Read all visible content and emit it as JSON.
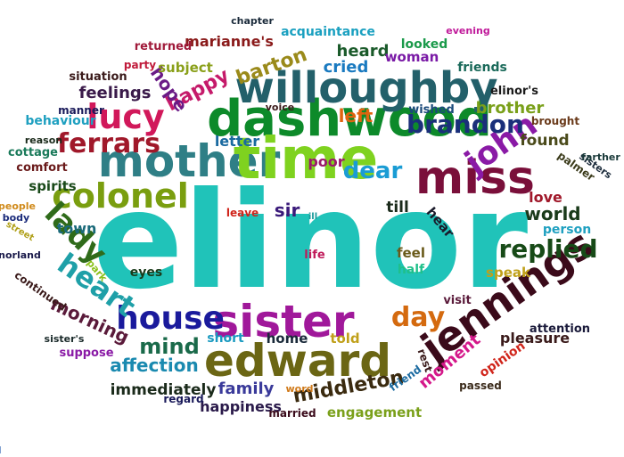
{
  "words": [
    {
      "id": "elinor",
      "text": "elinor",
      "color": "#20c3b9"
    },
    {
      "id": "dashwood",
      "text": "dashwood",
      "color": "#0d8a2a"
    },
    {
      "id": "mother",
      "text": "mother",
      "color": "#2f7f86"
    },
    {
      "id": "time",
      "text": "time",
      "color": "#7fd21f"
    },
    {
      "id": "willoughby",
      "text": "willoughby",
      "color": "#23606a"
    },
    {
      "id": "miss",
      "text": "miss",
      "color": "#7a0f3a"
    },
    {
      "id": "sister",
      "text": "sister",
      "color": "#a0189a"
    },
    {
      "id": "edward",
      "text": "edward",
      "color": "#6b6614"
    },
    {
      "id": "jennings",
      "text": "jennings",
      "color": "#3b0a1a"
    },
    {
      "id": "colonel",
      "text": "colonel",
      "color": "#7a9e0f"
    },
    {
      "id": "house",
      "text": "house",
      "color": "#1a1a9c"
    },
    {
      "id": "lucy",
      "text": "lucy",
      "color": "#d1185a"
    },
    {
      "id": "john",
      "text": "john",
      "color": "#8a1aa6"
    },
    {
      "id": "brandon",
      "text": "brandon",
      "color": "#1a2f7a"
    },
    {
      "id": "ferrars",
      "text": "ferrars",
      "color": "#a0182a"
    },
    {
      "id": "lady",
      "text": "lady",
      "color": "#2f6b1a"
    },
    {
      "id": "heart",
      "text": "heart",
      "color": "#1fa0a8"
    },
    {
      "id": "day",
      "text": "day",
      "color": "#d46a0f"
    },
    {
      "id": "dear",
      "text": "dear",
      "color": "#1a9cd4"
    },
    {
      "id": "replied",
      "text": "replied",
      "color": "#174a17"
    },
    {
      "id": "happy",
      "text": "happy",
      "color": "#c51a6a"
    },
    {
      "id": "hope",
      "text": "hope",
      "color": "#6a1a86"
    },
    {
      "id": "barton",
      "text": "barton",
      "color": "#9a8a1a"
    },
    {
      "id": "mind",
      "text": "mind",
      "color": "#1a6a4a"
    },
    {
      "id": "sir",
      "text": "sir",
      "color": "#3a1a7a"
    },
    {
      "id": "world",
      "text": "world",
      "color": "#1a3a1a"
    },
    {
      "id": "morning",
      "text": "morning",
      "color": "#5a1a3a"
    },
    {
      "id": "left",
      "text": "left",
      "color": "#e0640f"
    },
    {
      "id": "cried",
      "text": "cried",
      "color": "#1a7ac0"
    },
    {
      "id": "heard",
      "text": "heard",
      "color": "#1a5a2a"
    },
    {
      "id": "moment",
      "text": "moment",
      "color": "#d4188a"
    },
    {
      "id": "middleton",
      "text": "middleton",
      "color": "#3a2a0f"
    },
    {
      "id": "affection",
      "text": "affection",
      "color": "#1a8ab0"
    },
    {
      "id": "family",
      "text": "family",
      "color": "#3a3a9a"
    },
    {
      "id": "immediately",
      "text": "immediately",
      "color": "#1a2a1a"
    },
    {
      "id": "feelings",
      "text": "feelings",
      "color": "#3a1a4a"
    },
    {
      "id": "subject",
      "text": "subject",
      "color": "#8aa01a"
    },
    {
      "id": "brother",
      "text": "brother",
      "color": "#7aa01a"
    },
    {
      "id": "letter",
      "text": "letter",
      "color": "#1a6aa0"
    },
    {
      "id": "poor",
      "text": "poor",
      "color": "#9a1a6a"
    },
    {
      "id": "till",
      "text": "till",
      "color": "#1a2a1a"
    },
    {
      "id": "town",
      "text": "town",
      "color": "#1a6a7a"
    },
    {
      "id": "found",
      "text": "found",
      "color": "#4a4a1a"
    },
    {
      "id": "love",
      "text": "love",
      "color": "#a0182a"
    },
    {
      "id": "pleasure",
      "text": "pleasure",
      "color": "#3a1a1a"
    },
    {
      "id": "hear",
      "text": "hear",
      "color": "#1a1a2a"
    },
    {
      "id": "happiness",
      "text": "happiness",
      "color": "#2a1a4a"
    },
    {
      "id": "engagement",
      "text": "engagement",
      "color": "#7aa01a"
    },
    {
      "id": "feel",
      "text": "feel",
      "color": "#6a5a1a"
    },
    {
      "id": "half",
      "text": "half",
      "color": "#1fc08a"
    },
    {
      "id": "home",
      "text": "home",
      "color": "#1a2a3a"
    },
    {
      "id": "told",
      "text": "told",
      "color": "#c0a01a"
    },
    {
      "id": "spirits",
      "text": "spirits",
      "color": "#1a4a1a"
    },
    {
      "id": "comfort",
      "text": "comfort",
      "color": "#6a1a1a"
    },
    {
      "id": "cottage",
      "text": "cottage",
      "color": "#1a7a5a"
    },
    {
      "id": "behaviour",
      "text": "behaviour",
      "color": "#1fa0c0"
    },
    {
      "id": "woman",
      "text": "woman",
      "color": "#7a1aa6"
    },
    {
      "id": "looked",
      "text": "looked",
      "color": "#1a9a4a"
    },
    {
      "id": "wished",
      "text": "wished",
      "color": "#1a4a7a"
    },
    {
      "id": "friends",
      "text": "friends",
      "color": "#1a6a5a"
    },
    {
      "id": "elinors",
      "text": "elinor's",
      "color": "#1a1a1a"
    },
    {
      "id": "acquaintance",
      "text": "acquaintance",
      "color": "#1aa0c0"
    },
    {
      "id": "mariannes",
      "text": "marianne's",
      "color": "#8a1a1a"
    },
    {
      "id": "situation",
      "text": "situation",
      "color": "#3a1a1a"
    },
    {
      "id": "returned",
      "text": "returned",
      "color": "#a01a3a"
    },
    {
      "id": "manner",
      "text": "manner",
      "color": "#1a1a5a"
    },
    {
      "id": "party",
      "text": "party",
      "color": "#c01a3a"
    },
    {
      "id": "chapter",
      "text": "chapter",
      "color": "#1a2a3a"
    },
    {
      "id": "evening",
      "text": "evening",
      "color": "#c01a9a"
    },
    {
      "id": "voice",
      "text": "voice",
      "color": "#3a1a1a"
    },
    {
      "id": "reason",
      "text": "reason",
      "color": "#1a2a1a"
    },
    {
      "id": "people",
      "text": "people",
      "color": "#d08a1a"
    },
    {
      "id": "body",
      "text": "body",
      "color": "#1a2a7a"
    },
    {
      "id": "street",
      "text": "street",
      "color": "#b0a01a"
    },
    {
      "id": "norland",
      "text": "norland",
      "color": "#1a1a4a"
    },
    {
      "id": "continued",
      "text": "continued",
      "color": "#3a1a1a"
    },
    {
      "id": "sisters_poss",
      "text": "sister's",
      "color": "#1a2a2a"
    },
    {
      "id": "suppose",
      "text": "suppose",
      "color": "#8a1aa6"
    },
    {
      "id": "regard",
      "text": "regard",
      "color": "#1a1a5a"
    },
    {
      "id": "short",
      "text": "short",
      "color": "#1a9ac0"
    },
    {
      "id": "eyes",
      "text": "eyes",
      "color": "#1a3a1a"
    },
    {
      "id": "park",
      "text": "park",
      "color": "#8ac01a"
    },
    {
      "id": "life",
      "text": "life",
      "color": "#c01a5a"
    },
    {
      "id": "leave",
      "text": "leave",
      "color": "#d0241a"
    },
    {
      "id": "ill",
      "text": "ill",
      "color": "#1a9a9a"
    },
    {
      "id": "word",
      "text": "word",
      "color": "#d07a1a"
    },
    {
      "id": "married",
      "text": "married",
      "color": "#3a0a1a"
    },
    {
      "id": "friend",
      "text": "friend",
      "color": "#1a6aa0"
    },
    {
      "id": "passed",
      "text": "passed",
      "color": "#3a2a1a"
    },
    {
      "id": "opinion",
      "text": "opinion",
      "color": "#d0241a"
    },
    {
      "id": "rest",
      "text": "rest",
      "color": "#3a1a1a"
    },
    {
      "id": "attention",
      "text": "attention",
      "color": "#1a1a3a"
    },
    {
      "id": "visit",
      "text": "visit",
      "color": "#5a1a3a"
    },
    {
      "id": "speak",
      "text": "speak",
      "color": "#c0a01a"
    },
    {
      "id": "person",
      "text": "person",
      "color": "#1fa0c0"
    },
    {
      "id": "palmer",
      "text": "palmer",
      "color": "#3a3a1a"
    },
    {
      "id": "sisters",
      "text": "sisters",
      "color": "#1a2a3a"
    },
    {
      "id": "farther",
      "text": "farther",
      "color": "#1a3a3a"
    },
    {
      "id": "brought",
      "text": "brought",
      "color": "#6a3a1a"
    }
  ]
}
